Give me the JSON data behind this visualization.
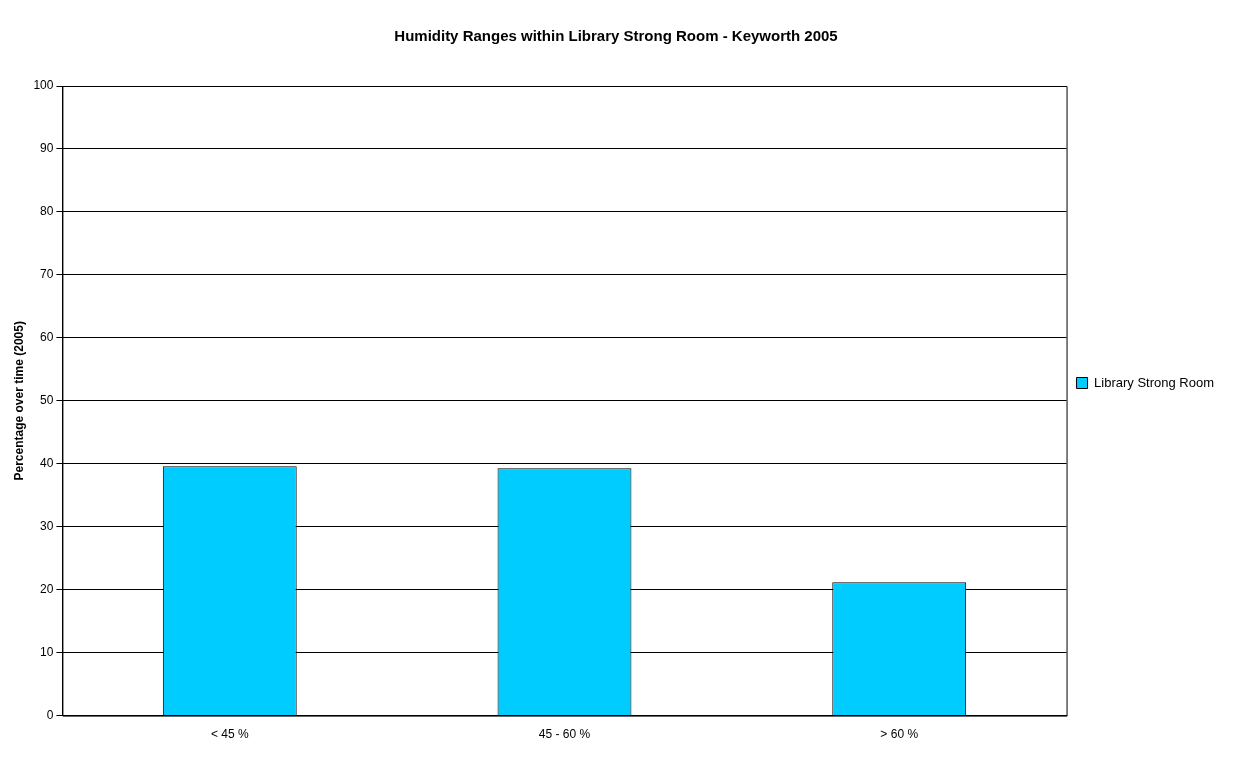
{
  "chart_data": {
    "type": "bar",
    "title": "Humidity Ranges within Library Strong Room - Keyworth 2005",
    "ylabel": "Percentage over time (2005)",
    "categories": [
      "< 45 %",
      "45 - 60 %",
      "> 60 %"
    ],
    "series": [
      {
        "name": "Library Strong Room",
        "color": "#00ccff",
        "values": [
          39.6,
          39.3,
          21.2
        ]
      }
    ],
    "ylim": [
      0,
      100
    ],
    "yticks": [
      0,
      10,
      20,
      30,
      40,
      50,
      60,
      70,
      80,
      90,
      100
    ],
    "grid": "y",
    "legend": "right"
  }
}
